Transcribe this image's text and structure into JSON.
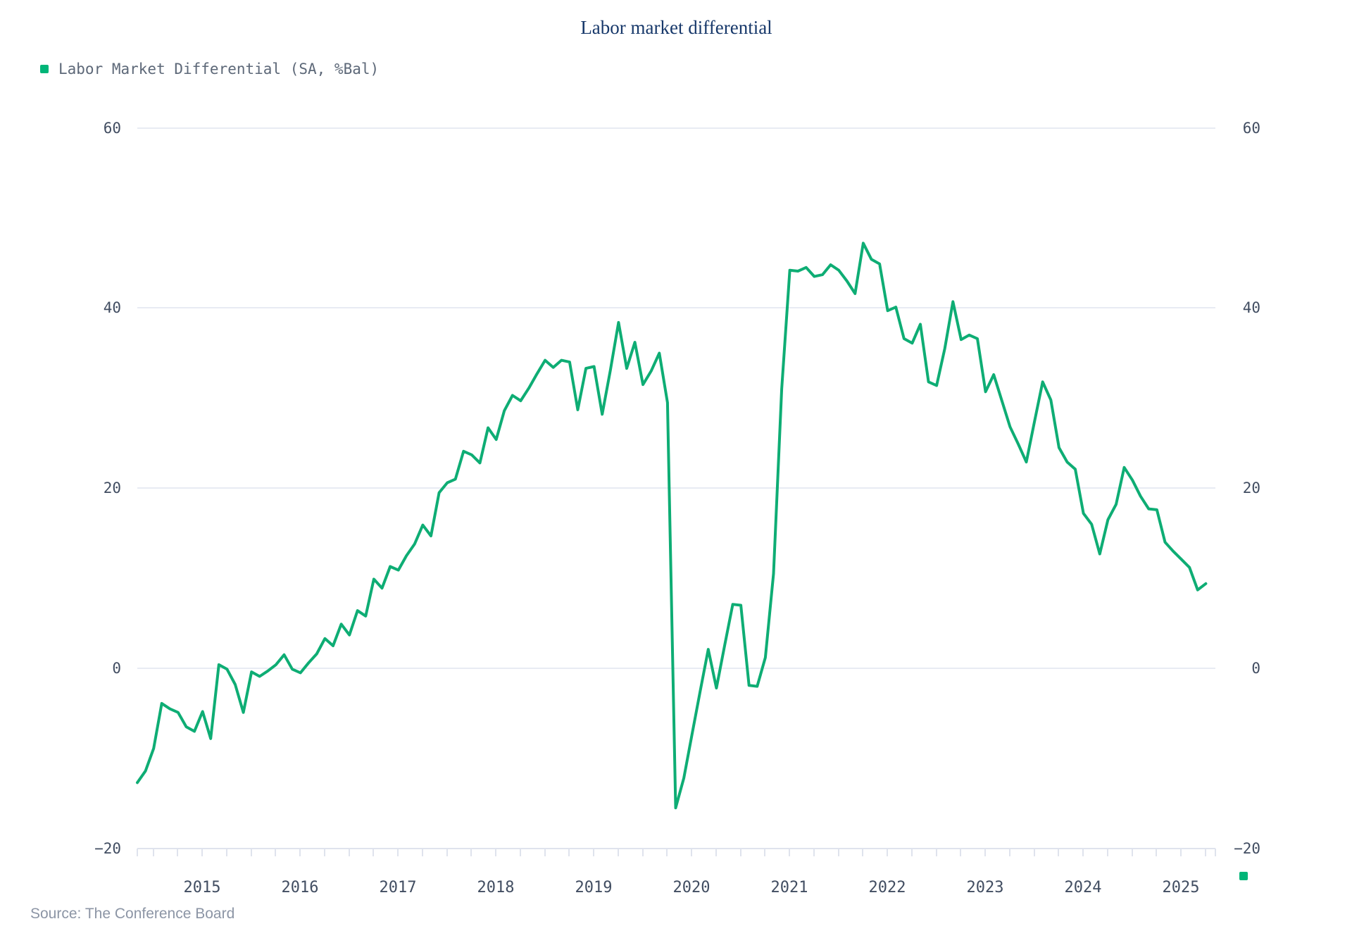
{
  "title": "Labor market differential",
  "legend": {
    "label": "Labor Market Differential (SA, %Bal)",
    "marker_color": "#00b578"
  },
  "source": "Source: The Conference Board",
  "colors": {
    "line": "#0ead74",
    "legend_marker": "#00b578",
    "grid": "#e8ebf3",
    "axis_line": "#dfe3ed",
    "axis_text": "#414d61",
    "title_text": "#17386a",
    "legend_text": "#5d6878",
    "source_text": "#8c95a5",
    "background": "#ffffff"
  },
  "chart_data": {
    "type": "line",
    "title": "Labor market differential",
    "series": [
      {
        "name": "Labor Market Differential (SA, %Bal)",
        "color": "#0ead74",
        "x_start": "2014-11",
        "frequency": "monthly",
        "values": [
          -12.7,
          -11.4,
          -8.9,
          -3.9,
          -4.5,
          -4.9,
          -6.5,
          -7.0,
          -4.8,
          -7.8,
          0.4,
          -0.1,
          -1.8,
          -4.9,
          -0.4,
          -0.9,
          -0.3,
          0.4,
          1.5,
          -0.1,
          -0.5,
          0.6,
          1.6,
          3.3,
          2.5,
          4.9,
          3.7,
          6.4,
          5.8,
          9.9,
          8.9,
          11.3,
          10.9,
          12.5,
          13.8,
          15.9,
          14.7,
          19.5,
          20.6,
          21.0,
          24.1,
          23.7,
          22.8,
          26.7,
          25.4,
          28.6,
          30.3,
          29.7,
          31.1,
          32.7,
          34.2,
          33.4,
          34.2,
          34.0,
          28.7,
          33.3,
          33.5,
          28.2,
          33.1,
          38.4,
          33.3,
          36.2,
          31.5,
          33.0,
          35.0,
          29.5,
          -15.5,
          -12.2,
          -7.4,
          -2.6,
          2.1,
          -2.2,
          2.5,
          7.1,
          7.0,
          -1.9,
          -2.0,
          1.2,
          10.5,
          31.0,
          44.2,
          44.1,
          44.5,
          43.5,
          43.7,
          44.8,
          44.2,
          43.0,
          41.6,
          47.2,
          45.4,
          44.9,
          39.7,
          40.1,
          36.6,
          36.1,
          38.2,
          31.8,
          31.4,
          35.5,
          40.7,
          36.5,
          37.0,
          36.6,
          30.7,
          32.6,
          29.7,
          26.8,
          24.9,
          22.9,
          27.4,
          31.8,
          29.8,
          24.5,
          22.9,
          22.1,
          17.2,
          16.0,
          12.7,
          16.5,
          18.2,
          22.3,
          20.9,
          19.1,
          17.7,
          17.6,
          14.0,
          13.0,
          12.1,
          11.2,
          8.7,
          9.4
        ]
      }
    ],
    "x_tick_labels": [
      "2015",
      "2016",
      "2017",
      "2018",
      "2019",
      "2020",
      "2021",
      "2022",
      "2023",
      "2024",
      "2025"
    ],
    "x_minor_ticks": "quarterly",
    "y_ticks": [
      60,
      40,
      20,
      0,
      -20
    ],
    "y_tick_labels": [
      "60",
      "40",
      "20",
      "0",
      "−20"
    ],
    "ylim": [
      -20,
      60
    ],
    "y_axis_sides": "both",
    "grid": "horizontal",
    "legend_position": "top-left"
  }
}
